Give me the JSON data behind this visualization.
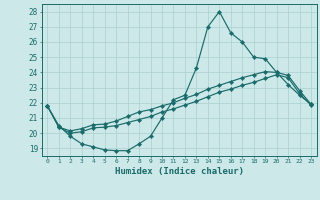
{
  "xlabel": "Humidex (Indice chaleur)",
  "bg_color": "#cce8e8",
  "grid_color": "#aacfcf",
  "line_color": "#1a6b6b",
  "xlim": [
    -0.5,
    23.5
  ],
  "ylim": [
    18.5,
    28.5
  ],
  "xticks": [
    0,
    1,
    2,
    3,
    4,
    5,
    6,
    7,
    8,
    9,
    10,
    11,
    12,
    13,
    14,
    15,
    16,
    17,
    18,
    19,
    20,
    21,
    22,
    23
  ],
  "yticks": [
    19,
    20,
    21,
    22,
    23,
    24,
    25,
    26,
    27,
    28
  ],
  "line1_x": [
    0,
    1,
    2,
    3,
    4,
    5,
    6,
    7,
    8,
    9,
    10,
    11,
    12,
    13,
    14,
    15,
    16,
    17,
    18,
    19,
    20,
    21,
    22,
    23
  ],
  "line1_y": [
    21.8,
    20.5,
    19.8,
    19.3,
    19.1,
    18.9,
    18.85,
    18.85,
    19.3,
    19.8,
    21.0,
    22.2,
    22.5,
    24.3,
    27.0,
    28.0,
    26.6,
    26.0,
    25.0,
    24.9,
    24.0,
    23.2,
    22.5,
    21.9
  ],
  "line2_x": [
    0,
    1,
    2,
    3,
    4,
    5,
    6,
    7,
    8,
    9,
    10,
    11,
    12,
    13,
    14,
    15,
    16,
    17,
    18,
    19,
    20,
    21,
    22,
    23
  ],
  "line2_y": [
    21.8,
    20.4,
    20.15,
    20.3,
    20.55,
    20.6,
    20.8,
    21.1,
    21.4,
    21.55,
    21.8,
    22.0,
    22.3,
    22.55,
    22.9,
    23.15,
    23.4,
    23.65,
    23.85,
    24.05,
    24.0,
    23.8,
    22.8,
    21.9
  ],
  "line3_x": [
    0,
    1,
    2,
    3,
    4,
    5,
    6,
    7,
    8,
    9,
    10,
    11,
    12,
    13,
    14,
    15,
    16,
    17,
    18,
    19,
    20,
    21,
    22,
    23
  ],
  "line3_y": [
    21.8,
    20.4,
    20.0,
    20.1,
    20.35,
    20.4,
    20.5,
    20.7,
    20.9,
    21.1,
    21.4,
    21.6,
    21.85,
    22.1,
    22.4,
    22.7,
    22.9,
    23.15,
    23.35,
    23.6,
    23.85,
    23.65,
    22.6,
    21.85
  ]
}
